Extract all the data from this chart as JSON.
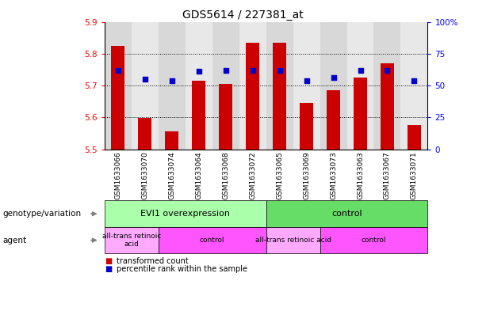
{
  "title": "GDS5614 / 227381_at",
  "samples": [
    "GSM1633066",
    "GSM1633070",
    "GSM1633074",
    "GSM1633064",
    "GSM1633068",
    "GSM1633072",
    "GSM1633065",
    "GSM1633069",
    "GSM1633073",
    "GSM1633063",
    "GSM1633067",
    "GSM1633071"
  ],
  "bar_values": [
    5.825,
    5.598,
    5.555,
    5.715,
    5.705,
    5.835,
    5.835,
    5.645,
    5.685,
    5.725,
    5.77,
    5.575
  ],
  "bar_base": 5.5,
  "percentile_values": [
    62,
    55,
    54,
    61,
    62,
    62,
    62,
    54,
    56,
    62,
    62,
    54
  ],
  "ylim": [
    5.5,
    5.9
  ],
  "yticks": [
    5.5,
    5.6,
    5.7,
    5.8,
    5.9
  ],
  "y2lim": [
    0,
    100
  ],
  "y2ticks": [
    0,
    25,
    50,
    75,
    100
  ],
  "y2labels": [
    "0",
    "25",
    "50",
    "75",
    "100%"
  ],
  "bar_color": "#cc0000",
  "percentile_color": "#0000cc",
  "grid_color": "#000000",
  "groups": [
    {
      "label": "EVI1 overexpression",
      "start": 0,
      "end": 6,
      "color": "#aaffaa"
    },
    {
      "label": "control",
      "start": 6,
      "end": 12,
      "color": "#66dd66"
    }
  ],
  "agents": [
    {
      "label": "all-trans retinoic\nacid",
      "start": 0,
      "end": 2,
      "color": "#ffaaff"
    },
    {
      "label": "control",
      "start": 2,
      "end": 6,
      "color": "#ff55ff"
    },
    {
      "label": "all-trans retinoic acid",
      "start": 6,
      "end": 8,
      "color": "#ffaaff"
    },
    {
      "label": "control",
      "start": 8,
      "end": 12,
      "color": "#ff55ff"
    }
  ],
  "legend_items": [
    {
      "label": "transformed count",
      "color": "#cc0000"
    },
    {
      "label": "percentile rank within the sample",
      "color": "#0000cc"
    }
  ],
  "xlabel_row1": "genotype/variation",
  "xlabel_row2": "agent",
  "col_bg_even": "#d8d8d8",
  "col_bg_odd": "#e8e8e8",
  "plot_bg": "#ffffff"
}
